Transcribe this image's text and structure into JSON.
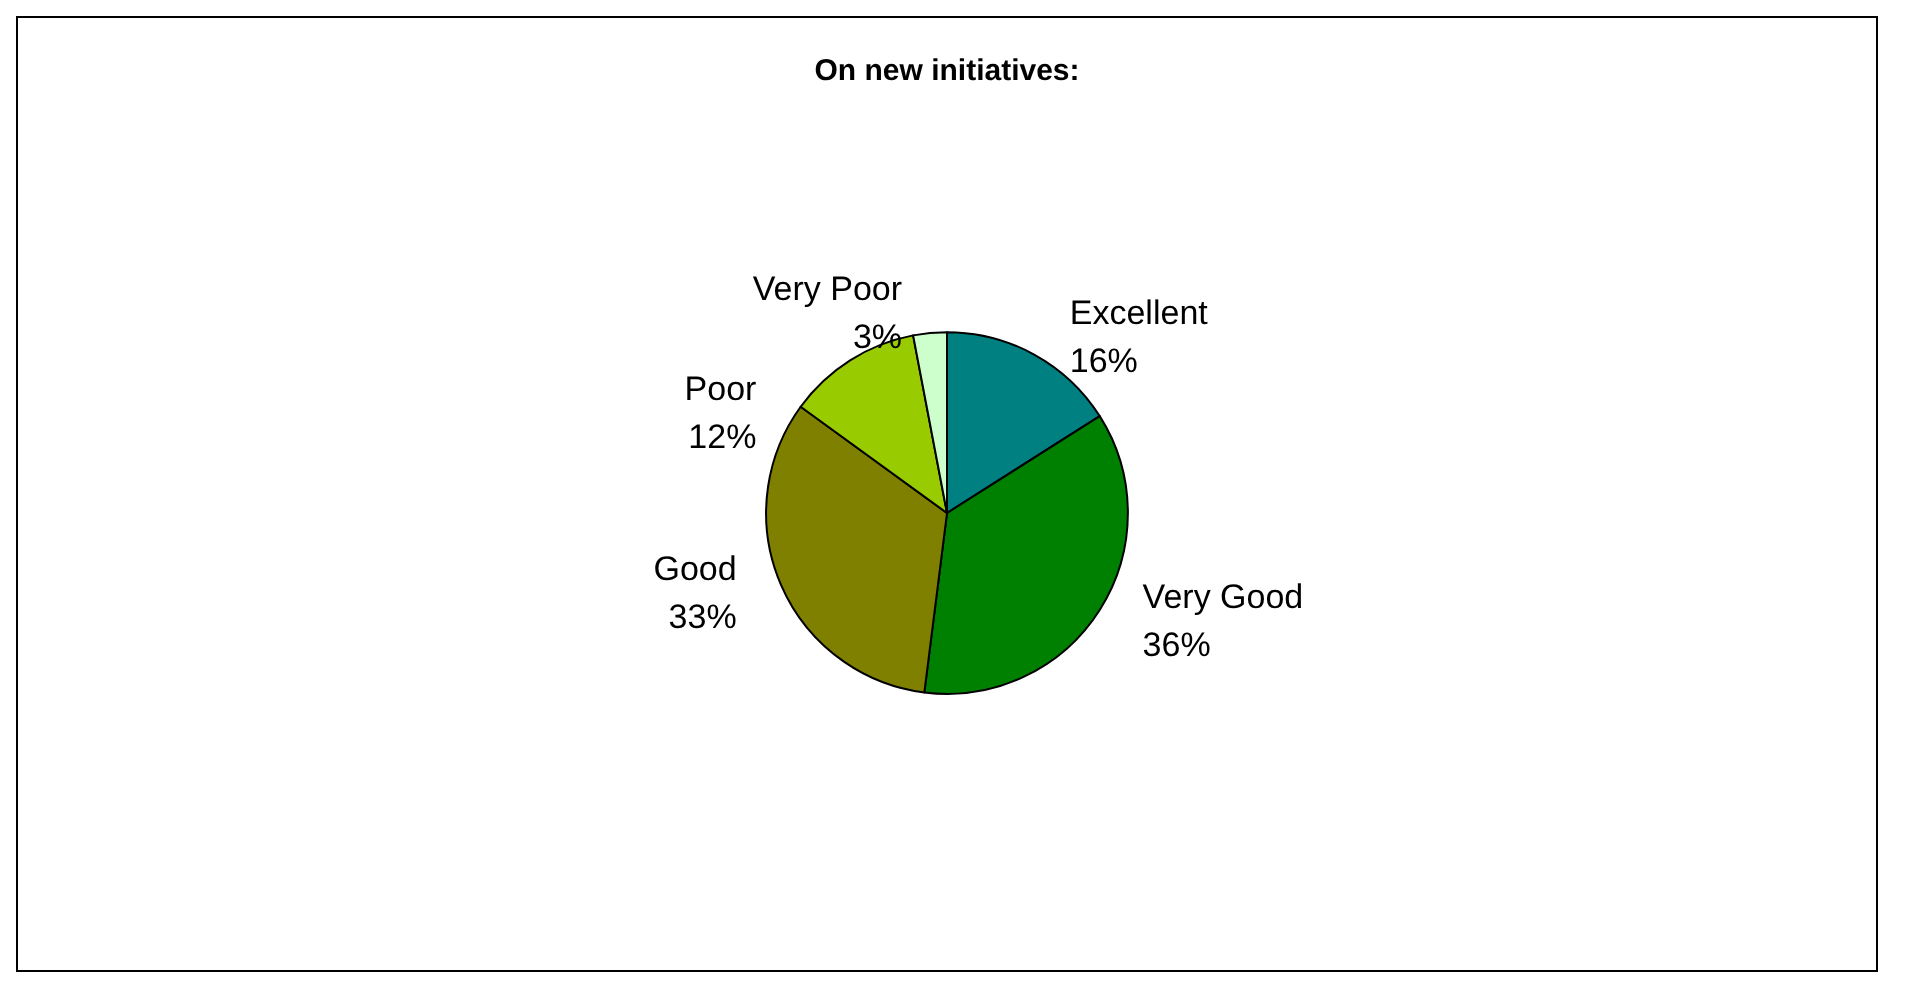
{
  "chart_data": {
    "type": "pie",
    "title": "On new initiatives:",
    "categories": [
      "Excellent",
      "Very Good",
      "Good",
      "Poor",
      "Very Poor"
    ],
    "values": [
      16,
      36,
      33,
      12,
      3
    ],
    "colors": [
      "#008080",
      "#008000",
      "#808000",
      "#99cc00",
      "#ccffcc"
    ],
    "value_labels": [
      "16%",
      "36%",
      "33%",
      "12%",
      "3%"
    ]
  }
}
